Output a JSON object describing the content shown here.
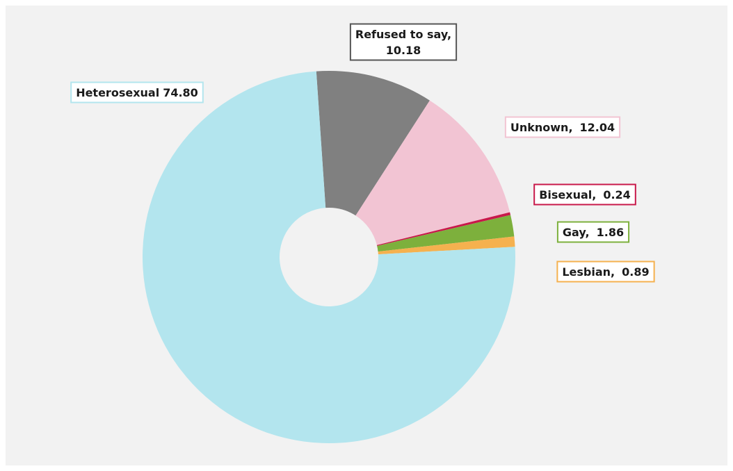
{
  "chart_data": {
    "type": "donut",
    "categories": [
      "Refused to say,",
      "Unknown,",
      "Bisexual,",
      "Gay,",
      "Lesbian,",
      "Heterosexual"
    ],
    "values": [
      10.18,
      12.04,
      0.24,
      1.86,
      0.89,
      74.8
    ],
    "value_labels": [
      "10.18",
      "12.04",
      "0.24",
      "1.86",
      "0.89",
      "74.80"
    ],
    "colors": [
      "#808080",
      "#f2c4d3",
      "#c8184a",
      "#7db03c",
      "#f5b14f",
      "#b3e5ee"
    ]
  }
}
